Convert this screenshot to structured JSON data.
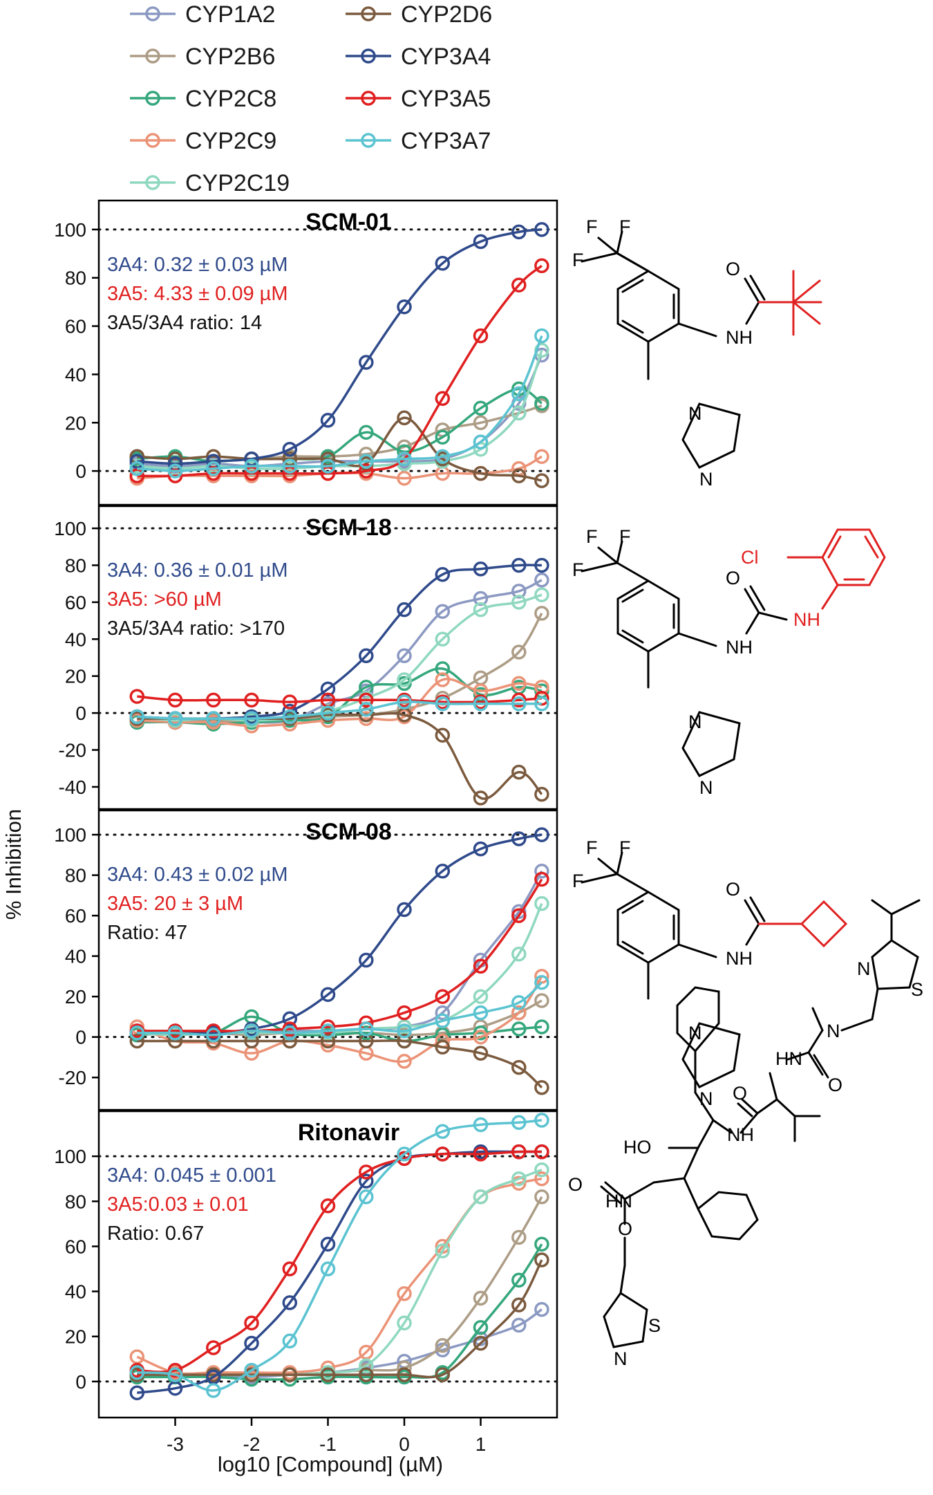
{
  "chart_data": {
    "type": "line",
    "ylabel": "% Inhibition",
    "xlabel": "log10 [Compound] (µM)",
    "xlim": [
      -4.0,
      2.0
    ],
    "xticks": [
      -3,
      -2,
      -1,
      0,
      1
    ],
    "x": [
      -3.5,
      -3.0,
      -2.5,
      -2.0,
      -1.5,
      -1.0,
      -0.5,
      0.0,
      0.5,
      1.0,
      1.5,
      1.8
    ],
    "legend": [
      {
        "name": "CYP1A2",
        "color": "#8b99c2"
      },
      {
        "name": "CYP2B6",
        "color": "#ad9d86"
      },
      {
        "name": "CYP2C8",
        "color": "#35a77c"
      },
      {
        "name": "CYP2C9",
        "color": "#eb9377"
      },
      {
        "name": "CYP2C19",
        "color": "#8fd8bf"
      },
      {
        "name": "CYP2D6",
        "color": "#7b5a3e"
      },
      {
        "name": "CYP3A4",
        "color": "#2f4a8b"
      },
      {
        "name": "CYP3A5",
        "color": "#e02020"
      },
      {
        "name": "CYP3A7",
        "color": "#5bc3d1"
      }
    ],
    "panels": [
      {
        "title": "SCM-01",
        "ylim": [
          -14,
          112
        ],
        "yticks": [
          0,
          20,
          40,
          60,
          80,
          100
        ],
        "annotations": [
          {
            "text": "3A4: 0.32 ± 0.03 µM",
            "color": "#2f4a8b"
          },
          {
            "text": "3A5: 4.33 ± 0.09 µM",
            "color": "#e02020"
          },
          {
            "text": "3A5/3A4 ratio: 14",
            "color": "#111111"
          }
        ],
        "series": [
          {
            "name": "CYP1A2",
            "values": [
              3,
              2,
              3,
              2,
              3,
              4,
              4,
              4,
              5,
              12,
              28,
              48
            ]
          },
          {
            "name": "CYP2B6",
            "values": [
              6,
              5,
              6,
              5,
              6,
              6,
              7,
              10,
              17,
              20,
              24,
              27
            ]
          },
          {
            "name": "CYP2C8",
            "values": [
              5,
              6,
              4,
              5,
              5,
              6,
              16,
              8,
              14,
              26,
              34,
              28
            ]
          },
          {
            "name": "CYP2C9",
            "values": [
              -3,
              -2,
              -2,
              -2,
              -2,
              -1,
              -1,
              -3,
              -1,
              -1,
              1,
              6
            ]
          },
          {
            "name": "CYP2C19",
            "values": [
              2,
              1,
              2,
              1,
              1,
              2,
              2,
              3,
              4,
              9,
              24,
              50
            ]
          },
          {
            "name": "CYP2D6",
            "values": [
              6,
              5,
              6,
              5,
              5,
              5,
              3,
              22,
              5,
              -1,
              -2,
              -4
            ]
          },
          {
            "name": "CYP3A4",
            "values": [
              4,
              3,
              4,
              5,
              9,
              21,
              45,
              68,
              86,
              95,
              99,
              100
            ]
          },
          {
            "name": "CYP3A5",
            "values": [
              -2,
              -2,
              -1,
              -1,
              -1,
              -1,
              0,
              5,
              30,
              56,
              77,
              85
            ]
          },
          {
            "name": "CYP3A7",
            "values": [
              1,
              0,
              1,
              2,
              2,
              2,
              4,
              5,
              6,
              12,
              32,
              56
            ]
          }
        ]
      },
      {
        "title": "SCM-18",
        "ylim": [
          -52,
          112
        ],
        "yticks": [
          -40,
          -20,
          0,
          20,
          40,
          60,
          80,
          100
        ],
        "annotations": [
          {
            "text": "3A4: 0.36 ± 0.01 µM",
            "color": "#2f4a8b"
          },
          {
            "text": "3A5: >60 µM",
            "color": "#e02020"
          },
          {
            "text": "3A5/3A4 ratio: >170",
            "color": "#111111"
          }
        ],
        "series": [
          {
            "name": "CYP1A2",
            "values": [
              -4,
              -5,
              -4,
              -5,
              -4,
              5,
              12,
              31,
              55,
              62,
              66,
              72
            ]
          },
          {
            "name": "CYP2B6",
            "values": [
              -3,
              -4,
              -4,
              -5,
              -4,
              -2,
              -1,
              2,
              8,
              19,
              33,
              54
            ]
          },
          {
            "name": "CYP2C8",
            "values": [
              -5,
              -5,
              -6,
              -5,
              -4,
              -2,
              14,
              16,
              24,
              10,
              14,
              12
            ]
          },
          {
            "name": "CYP2C9",
            "values": [
              -4,
              -5,
              -5,
              -7,
              -6,
              -4,
              -3,
              -2,
              18,
              12,
              16,
              14
            ]
          },
          {
            "name": "CYP2C19",
            "values": [
              -2,
              -4,
              -3,
              -4,
              -3,
              1,
              8,
              18,
              40,
              56,
              60,
              64
            ]
          },
          {
            "name": "CYP2D6",
            "values": [
              -3,
              -3,
              -3,
              -3,
              -3,
              -1,
              -1,
              -1,
              -12,
              -46,
              -32,
              -44
            ]
          },
          {
            "name": "CYP3A4",
            "values": [
              -2,
              -3,
              -3,
              -2,
              1,
              13,
              31,
              56,
              75,
              78,
              80,
              80
            ]
          },
          {
            "name": "CYP3A5",
            "values": [
              9,
              7,
              7,
              7,
              6,
              7,
              7,
              7,
              6,
              6,
              7,
              8
            ]
          },
          {
            "name": "CYP3A7",
            "values": [
              -2,
              -3,
              -3,
              -3,
              -2,
              0,
              2,
              6,
              5,
              5,
              5,
              5
            ]
          }
        ]
      },
      {
        "title": "SCM-08",
        "ylim": [
          -36,
          112
        ],
        "yticks": [
          -20,
          0,
          20,
          40,
          60,
          80,
          100
        ],
        "annotations": [
          {
            "text": "3A4: 0.43 ± 0.02 µM",
            "color": "#2f4a8b"
          },
          {
            "text": "3A5: 20 ± 3 µM",
            "color": "#e02020"
          },
          {
            "text": "Ratio: 47",
            "color": "#111111"
          }
        ],
        "series": [
          {
            "name": "CYP1A2",
            "values": [
              3,
              2,
              3,
              2,
              3,
              3,
              4,
              5,
              12,
              38,
              62,
              82
            ]
          },
          {
            "name": "CYP2B6",
            "values": [
              2,
              2,
              2,
              1,
              2,
              1,
              2,
              1,
              2,
              5,
              12,
              18
            ]
          },
          {
            "name": "CYP2C8",
            "values": [
              1,
              2,
              2,
              10,
              2,
              1,
              2,
              -2,
              1,
              2,
              4,
              5
            ]
          },
          {
            "name": "CYP2C9",
            "values": [
              5,
              -2,
              -3,
              -8,
              -2,
              -4,
              -8,
              -12,
              -2,
              0,
              12,
              30
            ]
          },
          {
            "name": "CYP2C19",
            "values": [
              2,
              1,
              2,
              2,
              2,
              2,
              4,
              5,
              8,
              20,
              41,
              66
            ]
          },
          {
            "name": "CYP2D6",
            "values": [
              -2,
              -2,
              -2,
              -2,
              -2,
              -2,
              -2,
              -2,
              -5,
              -8,
              -15,
              -25
            ]
          },
          {
            "name": "CYP3A4",
            "values": [
              2,
              2,
              2,
              4,
              9,
              21,
              38,
              63,
              82,
              93,
              98,
              100
            ]
          },
          {
            "name": "CYP3A5",
            "values": [
              3,
              3,
              3,
              3,
              4,
              5,
              7,
              12,
              20,
              35,
              60,
              78
            ]
          },
          {
            "name": "CYP3A7",
            "values": [
              2,
              2,
              1,
              3,
              2,
              3,
              4,
              3,
              8,
              12,
              17,
              27
            ]
          }
        ]
      },
      {
        "title": "Ritonavir",
        "ylim": [
          -16,
          120
        ],
        "yticks": [
          0,
          20,
          40,
          60,
          80,
          100
        ],
        "annotations": [
          {
            "text": "3A4: 0.045 ± 0.001",
            "color": "#2f4a8b"
          },
          {
            "text": "3A5:0.03 ± 0.01",
            "color": "#e02020"
          },
          {
            "text": "Ratio: 0.67",
            "color": "#111111"
          }
        ],
        "series": [
          {
            "name": "CYP1A2",
            "values": [
              3,
              3,
              3,
              2,
              3,
              4,
              6,
              9,
              14,
              19,
              25,
              32
            ]
          },
          {
            "name": "CYP2B6",
            "values": [
              3,
              3,
              3,
              3,
              3,
              4,
              5,
              6,
              16,
              37,
              64,
              82
            ]
          },
          {
            "name": "CYP2C8",
            "values": [
              2,
              2,
              2,
              1,
              1,
              2,
              2,
              2,
              4,
              24,
              45,
              61
            ]
          },
          {
            "name": "CYP2C9",
            "values": [
              11,
              4,
              4,
              4,
              4,
              6,
              13,
              39,
              60,
              82,
              88,
              90
            ]
          },
          {
            "name": "CYP2C19",
            "values": [
              3,
              3,
              3,
              3,
              3,
              4,
              7,
              26,
              58,
              82,
              90,
              94
            ]
          },
          {
            "name": "CYP2D6",
            "values": [
              3,
              3,
              3,
              3,
              3,
              3,
              3,
              3,
              3,
              17,
              34,
              54
            ]
          },
          {
            "name": "CYP3A4",
            "values": [
              -5,
              -3,
              2,
              17,
              35,
              61,
              89,
              99,
              101,
              102,
              102,
              102
            ]
          },
          {
            "name": "CYP3A5",
            "values": [
              5,
              5,
              15,
              26,
              50,
              78,
              93,
              99,
              101,
              101,
              102,
              102
            ]
          },
          {
            "name": "CYP3A7",
            "values": [
              4,
              3,
              -4,
              5,
              18,
              50,
              82,
              101,
              111,
              114,
              115,
              116
            ]
          }
        ]
      }
    ]
  },
  "structures": {
    "scm01": {
      "atoms": [
        "F",
        "F",
        "F",
        "O",
        "NH",
        "N",
        "N"
      ]
    },
    "scm18": {
      "atoms": [
        "F",
        "F",
        "F",
        "Cl",
        "O",
        "NH",
        "NH",
        "N",
        "N"
      ]
    },
    "scm08": {
      "atoms": [
        "F",
        "F",
        "F",
        "O",
        "NH",
        "N",
        "N"
      ]
    },
    "ritonavir": {
      "atoms": [
        "N",
        "S",
        "N",
        "HN",
        "O",
        "O",
        "HO",
        "NH",
        "HN",
        "O",
        "O",
        "S",
        "N"
      ]
    }
  }
}
